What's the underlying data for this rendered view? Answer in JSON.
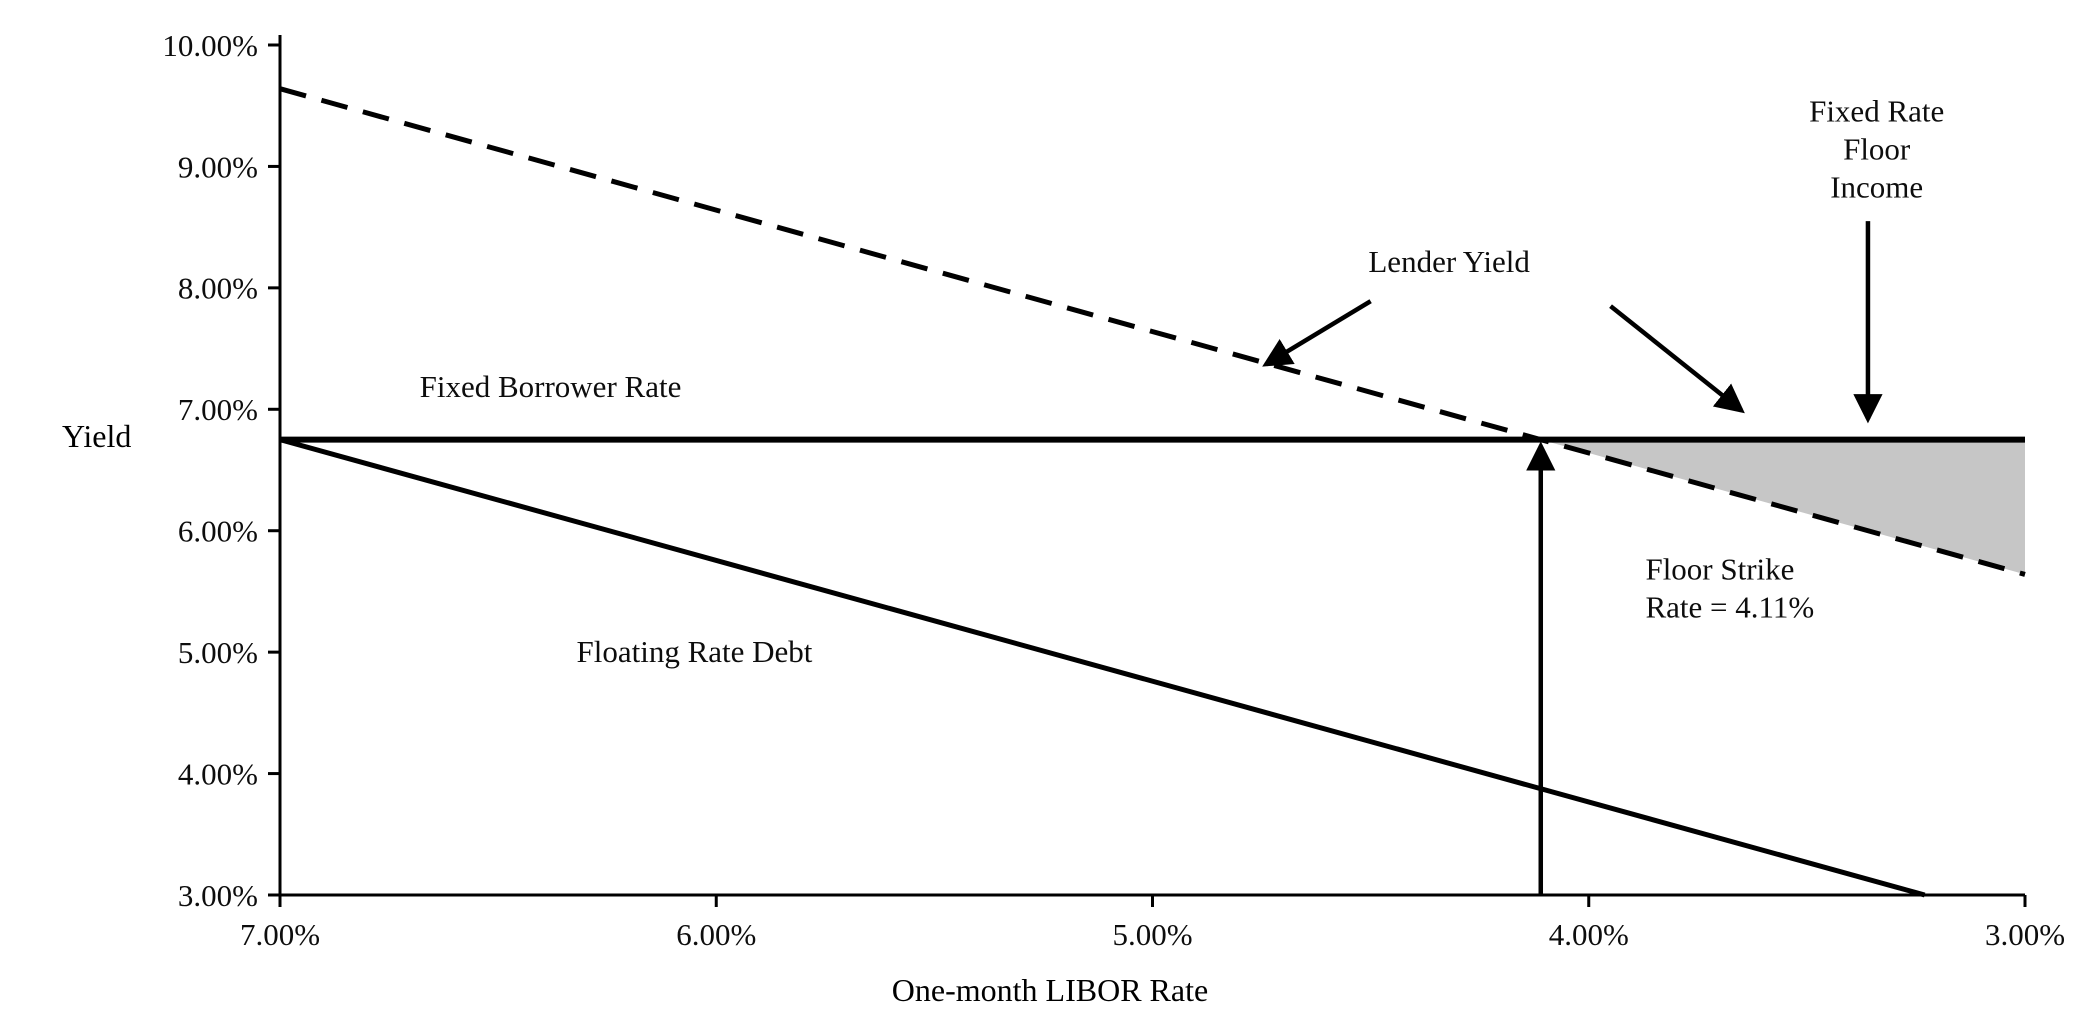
{
  "chart_data": {
    "type": "line",
    "xlabel": "One-month LIBOR Rate",
    "ylabel": "Yield",
    "x_axis": {
      "min": 3.0,
      "max": 7.0,
      "reversed": true,
      "ticks": [
        7.0,
        6.0,
        5.0,
        4.0,
        3.0
      ],
      "tick_labels": [
        "7.00%",
        "6.00%",
        "5.00%",
        "4.00%",
        "3.00%"
      ]
    },
    "y_axis": {
      "min": 3.0,
      "max": 10.0,
      "ticks": [
        10.0,
        9.0,
        8.0,
        7.0,
        6.0,
        5.0,
        4.0,
        3.0
      ],
      "tick_labels": [
        "10.00%",
        "9.00%",
        "8.00%",
        "7.00%",
        "6.00%",
        "5.00%",
        "4.00%",
        "3.00%"
      ]
    },
    "series": [
      {
        "name": "Lender Yield",
        "line_style": "dashed",
        "stroke_width": 5,
        "points": [
          [
            7.0,
            9.64
          ],
          [
            3.0,
            5.64
          ]
        ]
      },
      {
        "name": "Fixed Borrower Rate",
        "line_style": "solid",
        "stroke_width": 6,
        "points": [
          [
            7.0,
            6.75
          ],
          [
            3.0,
            6.75
          ]
        ]
      },
      {
        "name": "Floating Rate Debt",
        "line_style": "solid",
        "stroke_width": 5,
        "points": [
          [
            7.0,
            6.75
          ],
          [
            3.23,
            3.0
          ]
        ]
      }
    ],
    "shaded_region": {
      "name": "Fixed Rate Floor Income",
      "fill": "#c6c6c6",
      "points": [
        [
          4.11,
          6.75
        ],
        [
          3.0,
          6.75
        ],
        [
          3.0,
          5.64
        ]
      ]
    },
    "floor_strike_marker": {
      "x": 4.11,
      "from_y": 3.0,
      "to_y": 6.7
    },
    "labels": [
      {
        "id": "fixed-borrower-rate-label",
        "text": [
          "Fixed Borrower Rate"
        ],
        "x": 6.38,
        "y": 7.1,
        "align": "middle"
      },
      {
        "id": "floating-rate-debt-label",
        "text": [
          "Floating Rate Debt"
        ],
        "x": 6.05,
        "y": 4.92,
        "align": "middle"
      },
      {
        "id": "lender-yield-label",
        "text": [
          "Lender Yield"
        ],
        "x": 4.32,
        "y": 8.13,
        "align": "middle"
      },
      {
        "id": "fixed-rate-floor-income-label",
        "text": [
          "Fixed Rate",
          "Floor",
          "Income"
        ],
        "x": 3.34,
        "y": 9.37,
        "align": "middle"
      },
      {
        "id": "floor-strike-label",
        "text": [
          "Floor Strike",
          "Rate = 4.11%"
        ],
        "x": 3.87,
        "y": 5.6,
        "align": "start"
      }
    ],
    "arrows": [
      {
        "id": "lender-yield-arrow-left",
        "from": [
          4.5,
          7.89
        ],
        "to": [
          4.74,
          7.37
        ]
      },
      {
        "id": "lender-yield-arrow-right",
        "from": [
          3.95,
          7.85
        ],
        "to": [
          3.65,
          6.99
        ]
      },
      {
        "id": "floor-income-arrow",
        "from": [
          3.36,
          8.55
        ],
        "to": [
          3.36,
          6.92
        ]
      }
    ],
    "colors": {
      "line": "#000000",
      "text": "#0d0d0d",
      "shaded_fill": "#c6c6c6",
      "background": "#ffffff"
    }
  }
}
